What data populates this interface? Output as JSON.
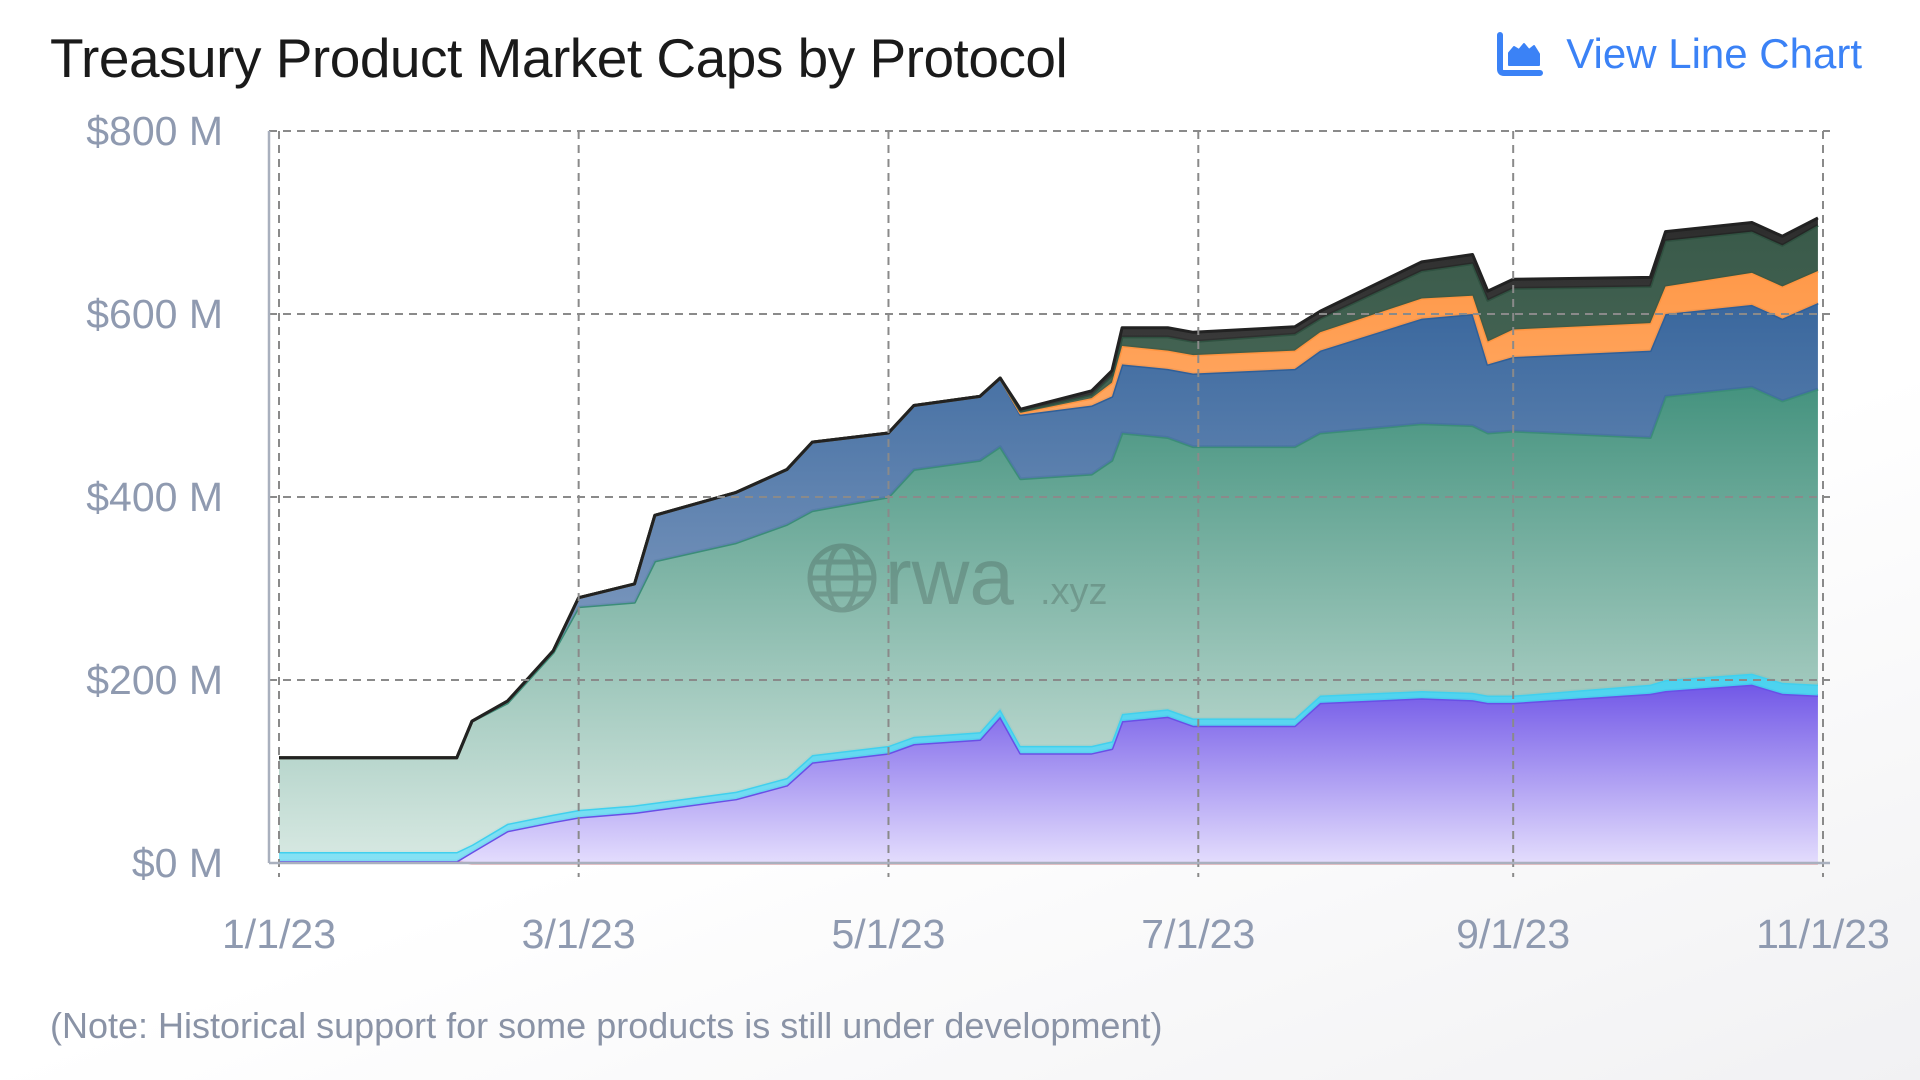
{
  "header": {
    "title": "Treasury Product Market Caps by Protocol",
    "view_button_label": "View Line Chart",
    "view_button_icon": "area-chart-icon"
  },
  "note": "(Note: Historical support for some products is still under development)",
  "watermark": {
    "text": "rwa",
    "suffix": ".xyz",
    "icon": "globe-icon"
  },
  "chart_data": {
    "type": "area",
    "stacked": true,
    "title": "Treasury Product Market Caps by Protocol",
    "xlabel": "",
    "ylabel": "",
    "x_unit": "days since 1/1/23",
    "xlim": [
      0,
      304
    ],
    "ylim": [
      0,
      800
    ],
    "grid": true,
    "y_ticks": [
      {
        "value": 0,
        "label": "$0 M"
      },
      {
        "value": 200,
        "label": "$200 M"
      },
      {
        "value": 400,
        "label": "$400 M"
      },
      {
        "value": 600,
        "label": "$600 M"
      },
      {
        "value": 800,
        "label": "$800 M"
      }
    ],
    "x_ticks": [
      {
        "value": 0,
        "label": "1/1/23"
      },
      {
        "value": 59,
        "label": "3/1/23"
      },
      {
        "value": 120,
        "label": "5/1/23"
      },
      {
        "value": 181,
        "label": "7/1/23"
      },
      {
        "value": 243,
        "label": "9/1/23"
      },
      {
        "value": 304,
        "label": "11/1/23"
      }
    ],
    "x": [
      0,
      35,
      38,
      45,
      54,
      59,
      70,
      74,
      90,
      100,
      105,
      120,
      125,
      138,
      142,
      146,
      160,
      164,
      166,
      175,
      180,
      200,
      205,
      225,
      235,
      238,
      243,
      270,
      273,
      290,
      296,
      303
    ],
    "series": [
      {
        "name": "red",
        "color": "#e0565b",
        "light": "#e0565b",
        "values": [
          2,
          2,
          0,
          0,
          0,
          0,
          0,
          0,
          0,
          0,
          0,
          0,
          0,
          0,
          0,
          0,
          0,
          0,
          0,
          0,
          0,
          0,
          0,
          0,
          0,
          0,
          0,
          0,
          0,
          0,
          0,
          0
        ]
      },
      {
        "name": "purple",
        "color": "#6a4fe6",
        "light": "#e2dbfd",
        "values": [
          0,
          0,
          12,
          35,
          45,
          50,
          55,
          58,
          70,
          85,
          110,
          120,
          130,
          135,
          160,
          120,
          120,
          125,
          155,
          160,
          150,
          150,
          175,
          180,
          178,
          175,
          175,
          185,
          188,
          195,
          185,
          183
        ]
      },
      {
        "name": "cyan",
        "color": "#40d0ee",
        "light": "#7fe0f3",
        "values": [
          10,
          10,
          8,
          8,
          8,
          8,
          8,
          8,
          8,
          8,
          8,
          8,
          8,
          8,
          8,
          8,
          8,
          8,
          8,
          8,
          8,
          8,
          8,
          8,
          8,
          8,
          8,
          10,
          12,
          12,
          12,
          12
        ]
      },
      {
        "name": "teal",
        "color": "#3b8d78",
        "light": "#d3e6df",
        "values": [
          103,
          103,
          135,
          132,
          177,
          222,
          222,
          264,
          272,
          277,
          267,
          272,
          292,
          297,
          287,
          292,
          297,
          307,
          307,
          297,
          297,
          297,
          287,
          292,
          292,
          287,
          289,
          270,
          310,
          313,
          308,
          323
        ]
      },
      {
        "name": "blue",
        "color": "#2f5f98",
        "light": "#8da4c6",
        "values": [
          0,
          0,
          0,
          2,
          2,
          10,
          20,
          50,
          55,
          60,
          75,
          70,
          70,
          70,
          75,
          70,
          75,
          70,
          75,
          75,
          80,
          85,
          90,
          115,
          122,
          75,
          81,
          95,
          90,
          90,
          90,
          94
        ]
      },
      {
        "name": "orange",
        "color": "#ff9440",
        "light": "#ffc596",
        "values": [
          0,
          0,
          0,
          0,
          0,
          0,
          0,
          0,
          0,
          0,
          0,
          0,
          0,
          0,
          0,
          2,
          8,
          15,
          20,
          20,
          20,
          20,
          20,
          22,
          20,
          25,
          30,
          30,
          30,
          35,
          35,
          35
        ]
      },
      {
        "name": "dark-green",
        "color": "#2f5140",
        "light": "#587665",
        "values": [
          0,
          0,
          0,
          0,
          0,
          0,
          0,
          0,
          0,
          0,
          0,
          0,
          0,
          0,
          0,
          2,
          4,
          8,
          10,
          15,
          15,
          18,
          15,
          30,
          35,
          45,
          45,
          40,
          50,
          45,
          45,
          50
        ]
      },
      {
        "name": "gray",
        "color": "#222222",
        "light": "#5a5a5a",
        "values": [
          0,
          0,
          0,
          0,
          0,
          0,
          0,
          0,
          0,
          0,
          0,
          0,
          0,
          0,
          0,
          2,
          4,
          5,
          10,
          10,
          10,
          8,
          8,
          10,
          10,
          10,
          10,
          10,
          10,
          10,
          10,
          8
        ]
      }
    ]
  }
}
